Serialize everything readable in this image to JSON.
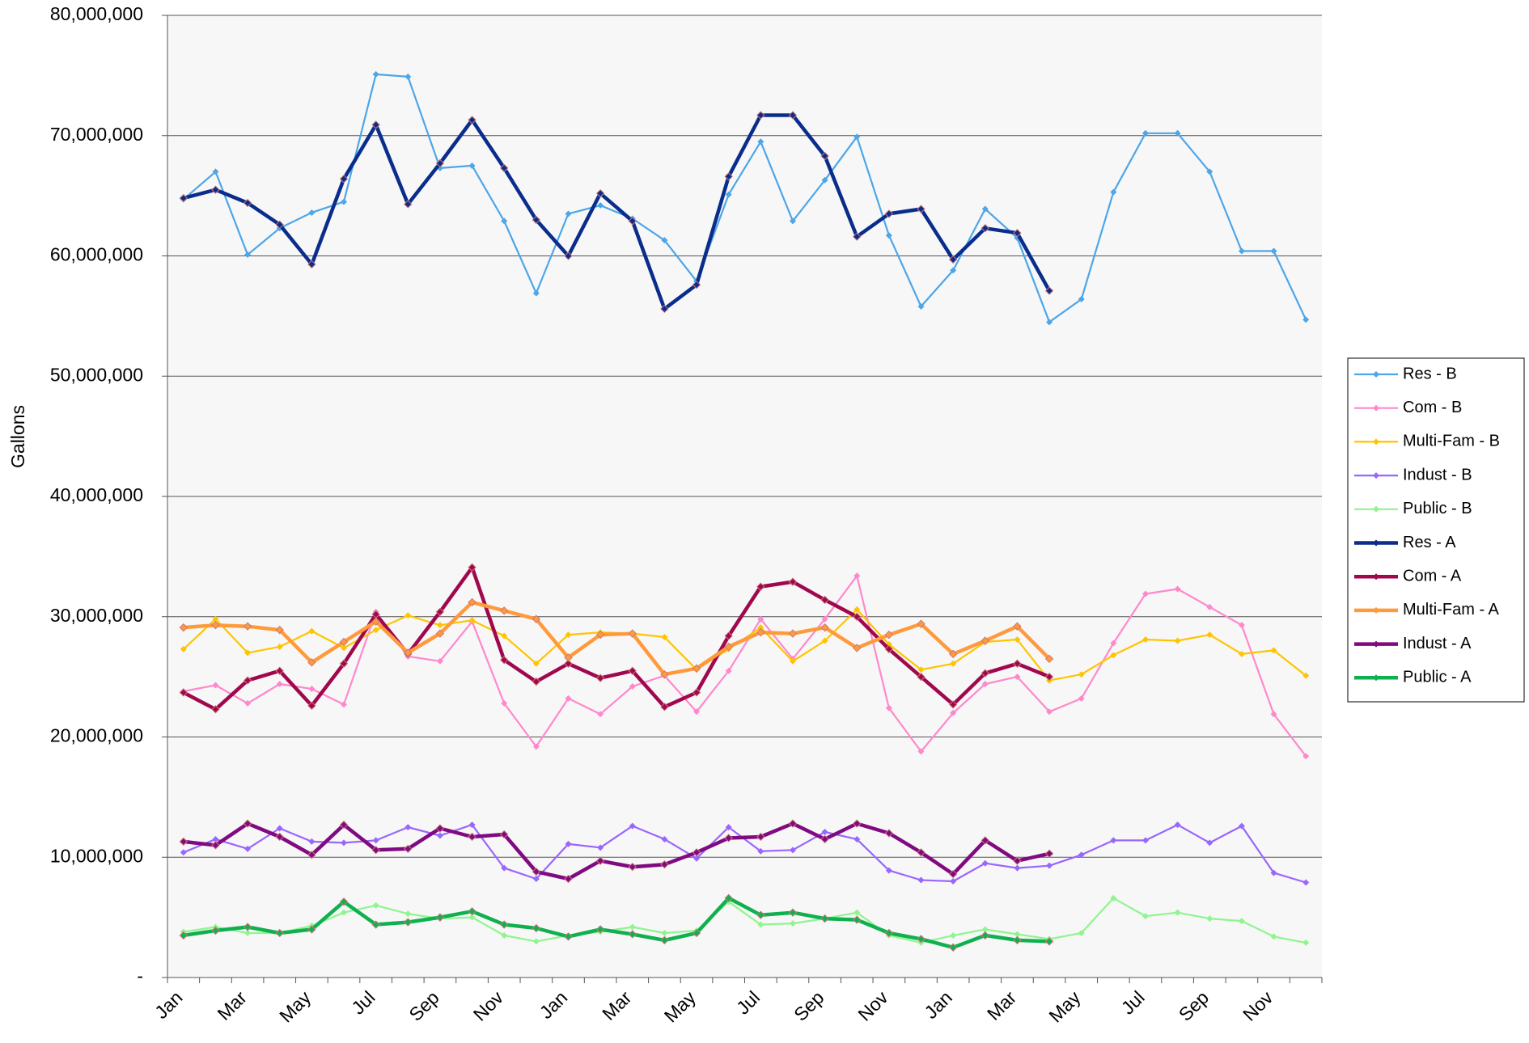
{
  "chart_data": {
    "type": "line",
    "y_label": "Gallons",
    "categories": [
      "Jan",
      null,
      "Mar",
      null,
      "May",
      null,
      "Jul",
      null,
      "Sep",
      null,
      "Nov",
      null,
      "Jan",
      null,
      "Mar",
      null,
      "May",
      null,
      "Jul",
      null,
      "Sep",
      null,
      "Nov",
      null,
      "Jan",
      null,
      "Mar",
      null,
      "May",
      null,
      "Jul",
      null,
      "Sep",
      null,
      "Nov",
      null
    ],
    "ylim": [
      0,
      80000000
    ],
    "yticks": [
      {
        "value": 0,
        "label": "-"
      },
      {
        "value": 10000000,
        "label": "10,000,000"
      },
      {
        "value": 20000000,
        "label": "20,000,000"
      },
      {
        "value": 30000000,
        "label": "30,000,000"
      },
      {
        "value": 40000000,
        "label": "40,000,000"
      },
      {
        "value": 50000000,
        "label": "50,000,000"
      },
      {
        "value": 60000000,
        "label": "60,000,000"
      },
      {
        "value": 70000000,
        "label": "70,000,000"
      },
      {
        "value": 80000000,
        "label": "80,000,000"
      }
    ],
    "grid": true,
    "legend": "right",
    "series": [
      {
        "name": "Res - B",
        "color": "#4da6e8",
        "values": [
          64700000,
          67000000,
          60100000,
          62300000,
          63600000,
          64500000,
          75100000,
          74900000,
          67300000,
          67500000,
          62900000,
          56900000,
          63500000,
          64200000,
          63100000,
          61300000,
          57900000,
          65100000,
          69500000,
          62900000,
          66300000,
          69900000,
          61700000,
          55800000,
          58800000,
          63900000,
          61500000,
          54500000,
          56400000,
          65300000,
          70200000,
          70200000,
          67000000,
          60400000,
          60400000,
          54700000
        ]
      },
      {
        "name": "Com - B",
        "color": "#ff88cc",
        "values": [
          23800000,
          24300000,
          22800000,
          24400000,
          24000000,
          22700000,
          30400000,
          26700000,
          26300000,
          29600000,
          22800000,
          19200000,
          23200000,
          21900000,
          24200000,
          25100000,
          22100000,
          25500000,
          29800000,
          26500000,
          29800000,
          33400000,
          22400000,
          18800000,
          22000000,
          24400000,
          25000000,
          22100000,
          23200000,
          27800000,
          31900000,
          32300000,
          30800000,
          29300000,
          21900000,
          18400000
        ]
      },
      {
        "name": "Multi-Fam - B",
        "color": "#ffc400",
        "values": [
          27300000,
          29800000,
          27000000,
          27500000,
          28800000,
          27400000,
          28900000,
          30100000,
          29300000,
          29700000,
          28400000,
          26100000,
          28500000,
          28700000,
          28600000,
          28300000,
          25600000,
          27300000,
          29100000,
          26300000,
          28000000,
          30600000,
          27700000,
          25600000,
          26100000,
          27900000,
          28100000,
          24700000,
          25200000,
          26800000,
          28100000,
          28000000,
          28500000,
          26900000,
          27200000,
          25100000
        ]
      },
      {
        "name": "Indust - B",
        "color": "#9966ff",
        "values": [
          10400000,
          11500000,
          10700000,
          12400000,
          11300000,
          11200000,
          11400000,
          12500000,
          11800000,
          12700000,
          9100000,
          8200000,
          11100000,
          10800000,
          12600000,
          11500000,
          9900000,
          12500000,
          10500000,
          10600000,
          12100000,
          11500000,
          8900000,
          8100000,
          8000000,
          9500000,
          9100000,
          9300000,
          10200000,
          11400000,
          11400000,
          12700000,
          11200000,
          12600000,
          8700000,
          7900000
        ]
      },
      {
        "name": "Public - B",
        "color": "#8ff58f",
        "values": [
          3800000,
          4200000,
          3700000,
          3700000,
          4300000,
          5400000,
          6000000,
          5300000,
          4900000,
          5000000,
          3500000,
          3000000,
          3500000,
          3800000,
          4200000,
          3700000,
          3900000,
          6300000,
          4400000,
          4500000,
          4900000,
          5400000,
          3500000,
          2900000,
          3500000,
          4000000,
          3600000,
          3200000,
          3700000,
          6600000,
          5100000,
          5400000,
          4900000,
          4700000,
          3400000,
          2900000
        ]
      },
      {
        "name": "Res - A",
        "color": "#0a2d8c",
        "values": [
          64800000,
          65500000,
          64400000,
          62600000,
          59300000,
          66400000,
          70900000,
          64300000,
          67700000,
          71300000,
          67300000,
          63000000,
          60000000,
          65200000,
          62900000,
          55600000,
          57600000,
          66600000,
          71700000,
          71700000,
          68300000,
          61600000,
          63500000,
          63900000,
          59700000,
          62300000,
          61900000,
          57100000,
          null,
          null,
          null,
          null,
          null,
          null,
          null,
          null
        ]
      },
      {
        "name": "Com - A",
        "color": "#a0084e",
        "values": [
          23700000,
          22300000,
          24700000,
          25500000,
          22600000,
          26100000,
          30200000,
          26900000,
          30400000,
          34100000,
          26400000,
          24600000,
          26100000,
          24900000,
          25500000,
          22500000,
          23700000,
          28400000,
          32500000,
          32900000,
          31400000,
          30000000,
          27300000,
          25000000,
          22700000,
          25300000,
          26100000,
          25000000,
          null,
          null,
          null,
          null,
          null,
          null,
          null,
          null
        ]
      },
      {
        "name": "Multi-Fam - A",
        "color": "#ff9a3c",
        "values": [
          29100000,
          29300000,
          29200000,
          28900000,
          26200000,
          27900000,
          29600000,
          27000000,
          28600000,
          31200000,
          30500000,
          29800000,
          26600000,
          28500000,
          28600000,
          25200000,
          25700000,
          27500000,
          28700000,
          28600000,
          29100000,
          27400000,
          28500000,
          29400000,
          26900000,
          28000000,
          29200000,
          26500000,
          null,
          null,
          null,
          null,
          null,
          null,
          null,
          null
        ]
      },
      {
        "name": "Indust - A",
        "color": "#800a80",
        "values": [
          11300000,
          11000000,
          12800000,
          11700000,
          10200000,
          12700000,
          10600000,
          10700000,
          12400000,
          11700000,
          11900000,
          8800000,
          8200000,
          9700000,
          9200000,
          9400000,
          10400000,
          11600000,
          11700000,
          12800000,
          11500000,
          12800000,
          12000000,
          10400000,
          8600000,
          11400000,
          9700000,
          10300000,
          null,
          null,
          null,
          null,
          null,
          null,
          null,
          null
        ]
      },
      {
        "name": "Public - A",
        "color": "#10b050",
        "values": [
          3500000,
          3900000,
          4200000,
          3700000,
          4000000,
          6300000,
          4400000,
          4600000,
          5000000,
          5500000,
          4400000,
          4100000,
          3400000,
          4000000,
          3600000,
          3100000,
          3700000,
          6600000,
          5200000,
          5400000,
          4900000,
          4800000,
          3700000,
          3200000,
          2500000,
          3500000,
          3100000,
          3000000,
          null,
          null,
          null,
          null,
          null,
          null,
          null,
          null
        ]
      }
    ]
  }
}
